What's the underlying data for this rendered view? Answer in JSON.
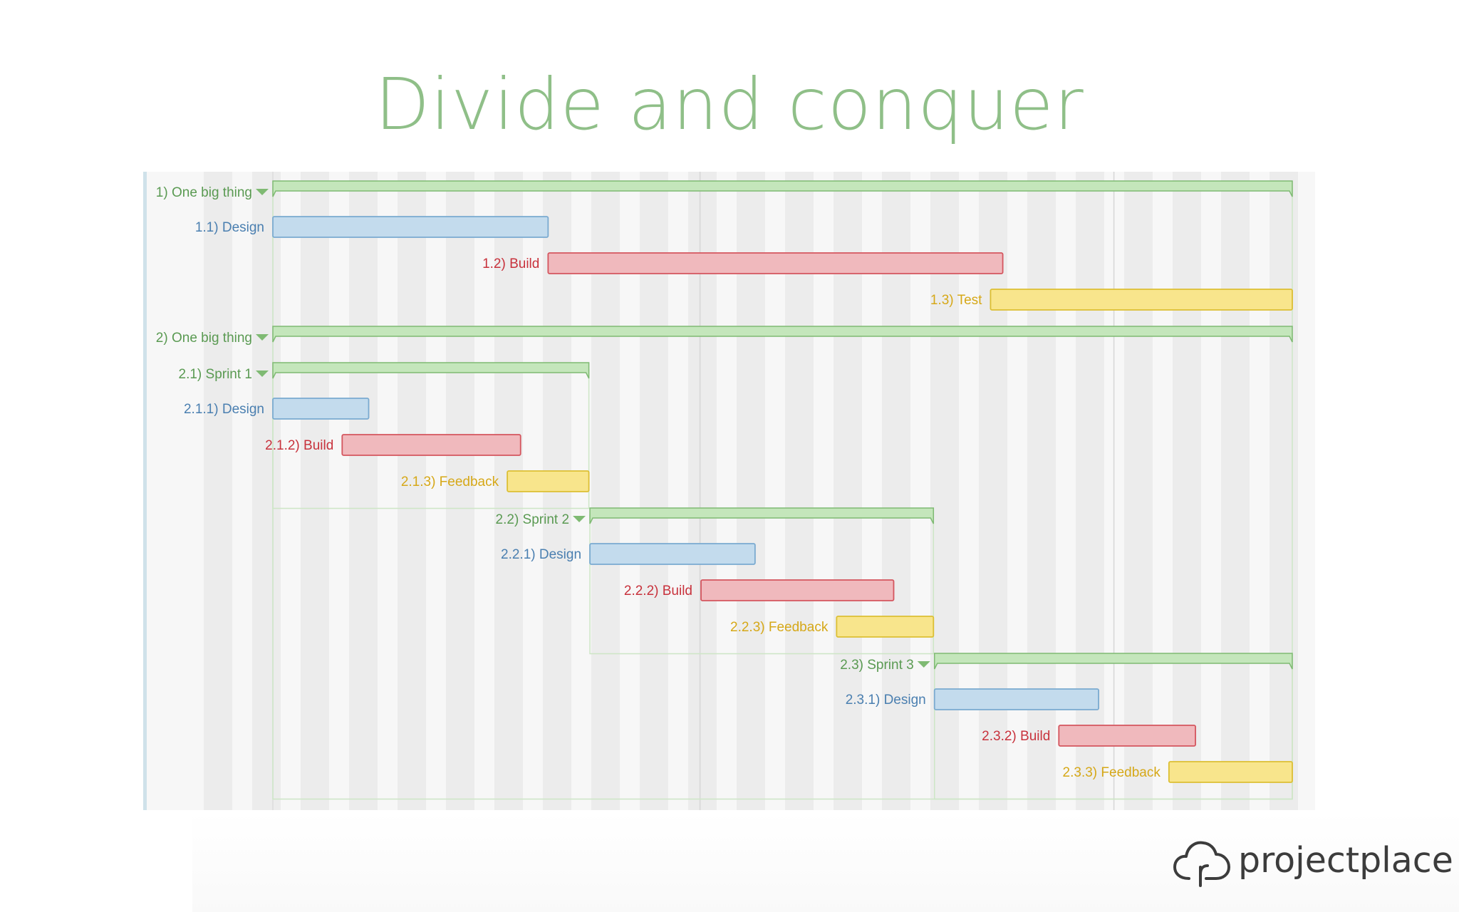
{
  "slide": {
    "title": "Divide and conquer",
    "brand": "projectplace"
  },
  "colors": {
    "title": "#8fbf88",
    "group_fill": "#c4e6bb",
    "group_stroke": "#7fba73",
    "group_text": "#5a9a52",
    "design_fill": "#c3dbed",
    "design_stroke": "#7aaad0",
    "design_text": "#4a7fb0",
    "build_fill": "#f0b9bd",
    "build_stroke": "#d4555e",
    "build_text": "#c8323c",
    "feedback_fill": "#f8e58c",
    "feedback_stroke": "#dcbf33",
    "feedback_text": "#d6a818"
  },
  "chart_data": {
    "type": "gantt",
    "time_range": [
      0,
      100
    ],
    "tasks": [
      {
        "label": "1) One big thing",
        "kind": "group",
        "start": 0,
        "end": 100,
        "collapsible": true
      },
      {
        "label": "1.1) Design",
        "kind": "design",
        "start": 0,
        "end": 27
      },
      {
        "label": "1.2) Build",
        "kind": "build",
        "start": 27,
        "end": 71.6
      },
      {
        "label": "1.3) Test",
        "kind": "feedback",
        "start": 70.4,
        "end": 100
      },
      {
        "label": "2) One big thing",
        "kind": "group",
        "start": 0,
        "end": 100,
        "collapsible": true
      },
      {
        "label": "2.1) Sprint 1",
        "kind": "group",
        "start": 0,
        "end": 31,
        "collapsible": true
      },
      {
        "label": "2.1.1) Design",
        "kind": "design",
        "start": 0,
        "end": 9.4
      },
      {
        "label": "2.1.2) Build",
        "kind": "build",
        "start": 6.8,
        "end": 24.3
      },
      {
        "label": "2.1.3) Feedback",
        "kind": "feedback",
        "start": 23,
        "end": 31
      },
      {
        "label": "2.2) Sprint 2",
        "kind": "group",
        "start": 31.1,
        "end": 64.8,
        "collapsible": true
      },
      {
        "label": "2.2.1) Design",
        "kind": "design",
        "start": 31.1,
        "end": 47.3
      },
      {
        "label": "2.2.2) Build",
        "kind": "build",
        "start": 42,
        "end": 60.9
      },
      {
        "label": "2.2.3) Feedback",
        "kind": "feedback",
        "start": 55.3,
        "end": 64.8
      },
      {
        "label": "2.3) Sprint 3",
        "kind": "group",
        "start": 64.9,
        "end": 100,
        "collapsible": true
      },
      {
        "label": "2.3.1) Design",
        "kind": "design",
        "start": 64.9,
        "end": 81
      },
      {
        "label": "2.3.2) Build",
        "kind": "build",
        "start": 77.1,
        "end": 90.5
      },
      {
        "label": "2.3.3) Feedback",
        "kind": "feedback",
        "start": 87.9,
        "end": 100
      }
    ],
    "containers": [
      {
        "group": 0,
        "last_row": 3
      },
      {
        "group": 4,
        "last_row": 16
      },
      {
        "group": 5,
        "last_row": 8
      },
      {
        "group": 9,
        "last_row": 12
      },
      {
        "group": 13,
        "last_row": 16
      }
    ],
    "grid_lines": [
      41.9,
      82.5
    ],
    "shaded_bands": true
  }
}
